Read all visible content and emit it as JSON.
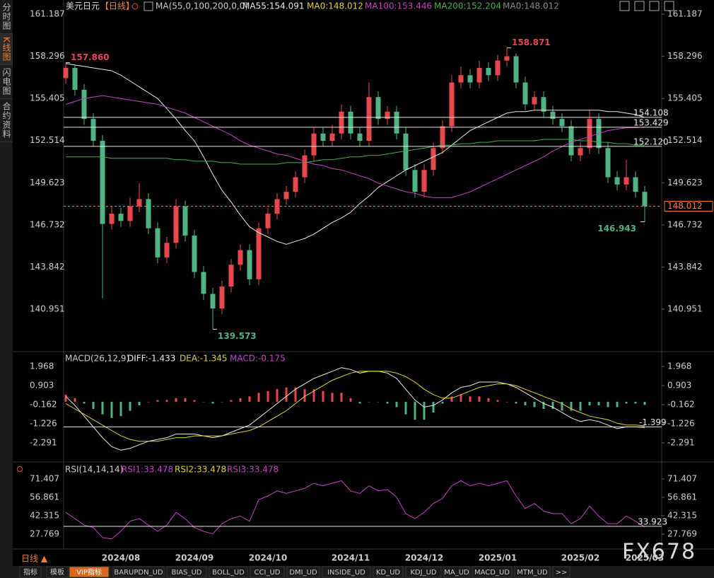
{
  "sidebar": {
    "tabs": [
      "分时图",
      "K线图",
      "闪电图",
      "合约资料"
    ],
    "active_tab": 1
  },
  "chart_data": [
    {
      "type": "candlestick",
      "title": "美元日元",
      "period": "【日线】",
      "indicator": "MA(55,0,100,200,0,0)",
      "categories": [
        null,
        null,
        null,
        null,
        null,
        null,
        "2024/08",
        null,
        null,
        null,
        null,
        null,
        null,
        null,
        "2024/09",
        null,
        null,
        null,
        null,
        null,
        null,
        null,
        "2024/10",
        null,
        null,
        null,
        null,
        null,
        null,
        null,
        null,
        "2024/11",
        null,
        null,
        null,
        null,
        null,
        null,
        null,
        "2024/12",
        null,
        null,
        null,
        null,
        null,
        null,
        null,
        "2025/01",
        null,
        null,
        null,
        null,
        null,
        null,
        null,
        null,
        "2025/02",
        null,
        null,
        null,
        null,
        null,
        null,
        "2025/03"
      ],
      "open": [
        156.8,
        157.5,
        156.0,
        154.0,
        152.5,
        146.8,
        147.5,
        147.0,
        148.0,
        148.5,
        146.5,
        144.5,
        145.5,
        148.0,
        146.0,
        143.5,
        142.0,
        141.0,
        142.5,
        144.0,
        145.0,
        143.0,
        146.5,
        147.5,
        148.5,
        149.0,
        150.0,
        151.5,
        153.0,
        152.5,
        153.0,
        154.5,
        153.0,
        152.5,
        155.5,
        154.0,
        154.5,
        153.0,
        150.5,
        149.0,
        150.5,
        152.0,
        153.5,
        156.5,
        157.0,
        156.5,
        157.5,
        157.0,
        158.0,
        158.3,
        156.5,
        155.0,
        155.5,
        154.5,
        154.0,
        153.5,
        151.5,
        152.0,
        154.0,
        152.0,
        150.0,
        149.5,
        150.0,
        149.0
      ],
      "high": [
        157.86,
        157.7,
        156.4,
        154.4,
        152.9,
        148.0,
        147.9,
        148.6,
        149.6,
        148.9,
        146.9,
        145.9,
        148.5,
        148.4,
        146.4,
        143.9,
        142.4,
        142.9,
        144.4,
        145.4,
        145.4,
        146.9,
        147.9,
        148.9,
        149.4,
        150.4,
        151.9,
        153.4,
        153.4,
        153.6,
        155.0,
        154.9,
        153.4,
        156.5,
        155.9,
        154.9,
        154.9,
        153.4,
        150.9,
        150.9,
        152.4,
        153.9,
        157.0,
        157.6,
        157.4,
        158.0,
        157.9,
        158.4,
        158.871,
        158.5,
        156.9,
        155.9,
        155.9,
        154.9,
        154.4,
        153.9,
        152.4,
        154.6,
        154.4,
        152.4,
        150.4,
        151.2,
        150.4,
        149.4
      ],
      "low": [
        156.4,
        155.6,
        153.6,
        152.1,
        141.7,
        146.4,
        146.6,
        146.6,
        147.6,
        146.1,
        144.1,
        144.1,
        145.1,
        145.6,
        143.1,
        141.6,
        139.573,
        140.6,
        142.1,
        143.6,
        142.6,
        142.6,
        146.1,
        147.1,
        148.1,
        148.6,
        149.6,
        151.1,
        152.1,
        152.1,
        152.6,
        152.6,
        152.1,
        152.1,
        153.6,
        153.6,
        152.6,
        150.1,
        148.6,
        148.6,
        150.1,
        151.6,
        153.1,
        156.1,
        156.1,
        156.1,
        156.6,
        156.6,
        157.6,
        156.1,
        154.6,
        154.6,
        154.1,
        153.6,
        153.1,
        151.1,
        151.1,
        151.6,
        151.6,
        149.6,
        149.1,
        149.1,
        148.6,
        146.943
      ],
      "close": [
        157.5,
        156.0,
        154.0,
        152.5,
        146.8,
        147.5,
        147.0,
        148.0,
        148.5,
        146.5,
        144.5,
        145.5,
        148.0,
        146.0,
        143.5,
        142.0,
        141.0,
        142.5,
        144.0,
        145.0,
        143.0,
        146.5,
        147.5,
        148.5,
        149.0,
        150.0,
        151.5,
        153.0,
        152.5,
        153.0,
        154.5,
        153.0,
        152.5,
        155.5,
        154.0,
        154.5,
        153.0,
        150.5,
        149.0,
        150.5,
        152.0,
        153.5,
        156.5,
        157.0,
        156.5,
        157.5,
        157.0,
        158.0,
        158.3,
        156.5,
        155.0,
        155.5,
        154.5,
        154.0,
        153.5,
        151.5,
        152.0,
        154.0,
        152.0,
        150.0,
        149.5,
        150.0,
        149.0,
        148.012
      ],
      "up_color": "#e8474e",
      "down_color": "#4fb386",
      "series": [
        {
          "name": "MA55:154.091",
          "color": "#e8e8e8",
          "values": [
            157.8,
            157.7,
            157.6,
            157.5,
            157.4,
            157.3,
            157.0,
            156.6,
            156.2,
            155.8,
            155.4,
            154.7,
            154.0,
            153.2,
            152.5,
            151.4,
            150.2,
            149.1,
            148.3,
            147.4,
            146.6,
            146.2,
            145.9,
            145.6,
            145.4,
            145.6,
            145.8,
            146.1,
            146.5,
            146.9,
            147.2,
            147.6,
            148.2,
            148.7,
            149.3,
            149.7,
            150.1,
            150.5,
            150.8,
            151.1,
            151.4,
            151.7,
            152.2,
            152.7,
            153.2,
            153.5,
            153.8,
            154.1,
            154.4,
            154.5,
            154.5,
            154.6,
            154.6,
            154.6,
            154.6,
            154.6,
            154.6,
            154.6,
            154.6,
            154.5,
            154.5,
            154.4,
            154.3,
            154.1
          ]
        },
        {
          "name": "MA100:153.446",
          "color": "#c63fc6",
          "values": [
            155.0,
            155.2,
            155.4,
            155.5,
            155.6,
            155.5,
            155.4,
            155.3,
            155.2,
            155.1,
            155.0,
            154.8,
            154.6,
            154.4,
            154.1,
            153.8,
            153.5,
            153.2,
            152.9,
            152.5,
            152.2,
            152.0,
            151.8,
            151.6,
            151.5,
            151.3,
            151.1,
            150.9,
            150.8,
            150.6,
            150.5,
            150.3,
            150.1,
            149.9,
            149.6,
            149.4,
            149.2,
            149.0,
            148.9,
            148.7,
            148.6,
            148.6,
            148.6,
            148.8,
            149.0,
            149.3,
            149.6,
            149.9,
            150.2,
            150.5,
            150.8,
            151.1,
            151.4,
            151.8,
            152.1,
            152.4,
            152.6,
            152.8,
            153.0,
            153.2,
            153.3,
            153.4,
            153.4,
            153.446
          ]
        },
        {
          "name": "MA200:152.204",
          "color": "#3fb24a",
          "values": [
            151.4,
            151.4,
            151.4,
            151.4,
            151.4,
            151.3,
            151.3,
            151.3,
            151.3,
            151.3,
            151.3,
            151.3,
            151.2,
            151.2,
            151.1,
            151.1,
            151.1,
            151.0,
            151.0,
            150.9,
            150.9,
            150.9,
            150.9,
            150.9,
            151.0,
            151.0,
            151.0,
            151.1,
            151.2,
            151.2,
            151.3,
            151.4,
            151.4,
            151.5,
            151.5,
            151.6,
            151.7,
            151.8,
            151.9,
            152.0,
            152.1,
            152.2,
            152.2,
            152.3,
            152.3,
            152.4,
            152.4,
            152.5,
            152.5,
            152.5,
            152.5,
            152.5,
            152.6,
            152.6,
            152.6,
            152.6,
            152.5,
            152.5,
            152.4,
            152.4,
            152.3,
            152.3,
            152.2,
            152.204
          ]
        }
      ],
      "legend_extra": [
        {
          "name": "MA0:148.012",
          "color": "#e0d030"
        },
        {
          "name": "MA0:148.012",
          "color": "#888888"
        }
      ],
      "hlines": [
        {
          "value": 154.108,
          "label": "154.108"
        },
        {
          "value": 153.429,
          "label": "153.429"
        },
        {
          "value": 152.12,
          "label": "152.120"
        }
      ],
      "last_price": {
        "value": 148.012,
        "label": "148.012",
        "color": "#f08030"
      },
      "annotations": [
        {
          "value": 157.86,
          "label": "157.860",
          "kind": "high",
          "color": "#e8474e"
        },
        {
          "value": 158.871,
          "label": "158.871",
          "kind": "high",
          "color": "#e8474e"
        },
        {
          "value": 139.573,
          "label": "139.573",
          "kind": "low",
          "color": "#4fb386"
        },
        {
          "value": 146.943,
          "label": "146.943",
          "kind": "low",
          "color": "#4fb386"
        }
      ],
      "ylim": [
        138.5,
        161.6
      ],
      "yticks": [
        161.187,
        158.296,
        155.405,
        152.514,
        149.623,
        146.732,
        143.842,
        140.951
      ]
    },
    {
      "type": "macd",
      "title": "MACD(26,12,9)",
      "series": [
        {
          "name": "DIFF:-1.433",
          "color": "#e8e8e8",
          "values": [
            0.3,
            -0.2,
            -0.8,
            -1.4,
            -2.0,
            -2.5,
            -2.7,
            -2.6,
            -2.4,
            -2.2,
            -2.1,
            -2.0,
            -1.8,
            -1.8,
            -1.8,
            -1.9,
            -2.0,
            -1.9,
            -1.7,
            -1.5,
            -1.3,
            -0.9,
            -0.5,
            -0.1,
            0.3,
            0.7,
            1.0,
            1.3,
            1.5,
            1.7,
            1.9,
            1.8,
            1.6,
            1.7,
            1.7,
            1.6,
            1.3,
            0.7,
            0.1,
            -0.3,
            -0.2,
            0.1,
            0.5,
            0.8,
            0.9,
            1.1,
            1.1,
            1.1,
            1.0,
            0.8,
            0.5,
            0.2,
            -0.1,
            -0.3,
            -0.6,
            -0.9,
            -1.1,
            -1.0,
            -1.1,
            -1.3,
            -1.5,
            -1.4,
            -1.4,
            -1.433
          ]
        },
        {
          "name": "DEA:-1.345",
          "color": "#e0d030",
          "values": [
            -0.1,
            -0.4,
            -0.7,
            -1.0,
            -1.3,
            -1.6,
            -1.9,
            -2.1,
            -2.2,
            -2.2,
            -2.2,
            -2.1,
            -2.0,
            -2.0,
            -1.9,
            -1.9,
            -1.9,
            -1.9,
            -1.8,
            -1.7,
            -1.6,
            -1.4,
            -1.1,
            -0.8,
            -0.5,
            -0.1,
            0.3,
            0.6,
            0.9,
            1.2,
            1.4,
            1.6,
            1.7,
            1.7,
            1.7,
            1.7,
            1.6,
            1.4,
            1.1,
            0.7,
            0.4,
            0.2,
            0.2,
            0.4,
            0.6,
            0.8,
            0.9,
            1.0,
            1.0,
            0.9,
            0.7,
            0.5,
            0.3,
            0.1,
            -0.1,
            -0.4,
            -0.6,
            -0.8,
            -0.9,
            -1.0,
            -1.2,
            -1.3,
            -1.3,
            -1.345
          ]
        }
      ],
      "histogram": {
        "name": "MACD:-0.175",
        "color": "#c63fc6",
        "up_color": "#e8474e",
        "down_color": "#4fb386",
        "values": [
          0.4,
          0.2,
          -0.1,
          -0.4,
          -0.7,
          -0.9,
          -0.8,
          -0.5,
          -0.2,
          0.0,
          0.1,
          0.1,
          0.2,
          0.2,
          0.1,
          0.0,
          -0.1,
          0.0,
          0.1,
          0.2,
          0.3,
          0.5,
          0.6,
          0.7,
          0.8,
          0.8,
          0.7,
          0.7,
          0.6,
          0.5,
          0.5,
          0.2,
          -0.1,
          0.0,
          0.0,
          -0.1,
          -0.3,
          -0.7,
          -1.0,
          -1.0,
          -0.6,
          -0.1,
          0.3,
          0.4,
          0.3,
          0.3,
          0.2,
          0.1,
          0.0,
          -0.1,
          -0.2,
          -0.3,
          -0.4,
          -0.4,
          -0.5,
          -0.5,
          -0.5,
          -0.2,
          -0.2,
          -0.3,
          -0.3,
          -0.1,
          -0.1,
          -0.175
        ]
      },
      "hlines": [
        {
          "value": -1.399,
          "label": "-1.399"
        }
      ],
      "ylim": [
        -2.9,
        2.6
      ],
      "yticks": [
        1.968,
        0.903,
        -0.162,
        -1.226,
        -2.291
      ]
    },
    {
      "type": "rsi",
      "title": "RSI(14,14,14)",
      "series": [
        {
          "name": "RSI1:33.478",
          "color": "#c63fc6",
          "values": [
            45,
            40,
            35,
            33,
            25,
            24,
            30,
            38,
            40,
            35,
            30,
            35,
            45,
            40,
            33,
            30,
            28,
            36,
            40,
            42,
            38,
            55,
            58,
            62,
            60,
            62,
            64,
            68,
            66,
            68,
            70,
            62,
            60,
            66,
            62,
            63,
            57,
            44,
            40,
            45,
            52,
            56,
            66,
            70,
            66,
            68,
            66,
            68,
            70,
            58,
            48,
            52,
            46,
            44,
            44,
            36,
            40,
            50,
            42,
            36,
            36,
            42,
            38,
            33.478
          ]
        }
      ],
      "legend_extra": [
        {
          "name": "RSI2:33.478",
          "color": "#e0d030"
        },
        {
          "name": "RSI3:33.478",
          "color": "#c63fc6"
        }
      ],
      "hlines": [
        {
          "value": 33.923,
          "label": "33.923"
        }
      ],
      "ylim": [
        22,
        78
      ],
      "yticks": [
        71.407,
        56.861,
        42.315,
        27.769
      ]
    }
  ],
  "footer": {
    "period": "日线 ▲",
    "tabs": [
      "指标",
      "模板",
      "VIP指标",
      "BARUPDN_UD",
      "BIAS_UD",
      "BOLL_UD",
      "CCI_UD",
      "DMI_UD",
      "INSIDE_UD",
      "KD_UD",
      "KDJ_UD",
      "MA_UD",
      "MACD_UD",
      "MTM_UD",
      ">>"
    ],
    "active_tab": 2
  },
  "watermark": "FX678"
}
